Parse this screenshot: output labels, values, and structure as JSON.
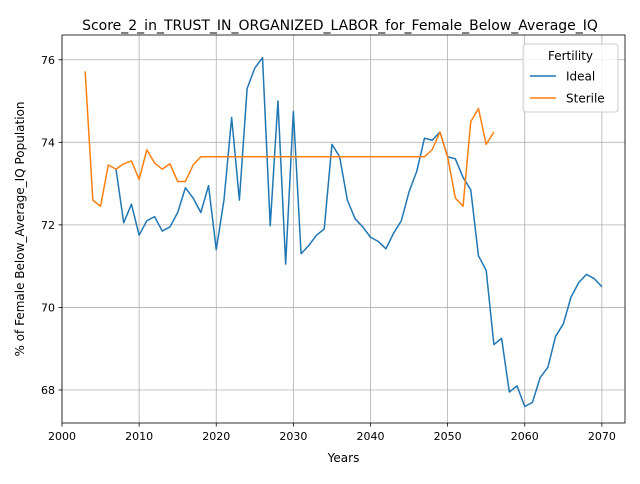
{
  "chart_data": {
    "type": "line",
    "title": "Score_2_in_TRUST_IN_ORGANIZED_LABOR_for_Female_Below_Average_IQ",
    "xlabel": "Years",
    "ylabel": "% of Female Below_Average_IQ Population",
    "xlim": [
      2000,
      2073
    ],
    "ylim": [
      67.2,
      76.6
    ],
    "x_ticks": [
      2000,
      2010,
      2020,
      2030,
      2040,
      2050,
      2060,
      2070
    ],
    "y_ticks": [
      68,
      70,
      72,
      74,
      76
    ],
    "grid": true,
    "legend": {
      "title": "Fertility",
      "placement": "top-right",
      "entries": [
        "Ideal",
        "Sterile"
      ]
    },
    "series": [
      {
        "name": "Ideal",
        "color": "#1f77b4",
        "points": [
          [
            2007,
            73.35
          ],
          [
            2008,
            72.05
          ],
          [
            2009,
            72.5
          ],
          [
            2010,
            71.75
          ],
          [
            2011,
            72.1
          ],
          [
            2012,
            72.2
          ],
          [
            2013,
            71.85
          ],
          [
            2014,
            71.95
          ],
          [
            2015,
            72.3
          ],
          [
            2016,
            72.9
          ],
          [
            2017,
            72.65
          ],
          [
            2018,
            72.3
          ],
          [
            2019,
            72.95
          ],
          [
            2020,
            71.4
          ],
          [
            2021,
            72.6
          ],
          [
            2022,
            74.6
          ],
          [
            2023,
            72.6
          ],
          [
            2024,
            75.3
          ],
          [
            2025,
            75.8
          ],
          [
            2026,
            76.05
          ],
          [
            2027,
            71.98
          ],
          [
            2028,
            75.0
          ],
          [
            2029,
            71.05
          ],
          [
            2030,
            74.75
          ],
          [
            2031,
            71.3
          ],
          [
            2032,
            71.5
          ],
          [
            2033,
            71.75
          ],
          [
            2034,
            71.9
          ],
          [
            2035,
            73.95
          ],
          [
            2036,
            73.65
          ],
          [
            2037,
            72.6
          ],
          [
            2038,
            72.15
          ],
          [
            2039,
            71.95
          ],
          [
            2040,
            71.7
          ],
          [
            2041,
            71.6
          ],
          [
            2042,
            71.42
          ],
          [
            2043,
            71.8
          ],
          [
            2044,
            72.1
          ],
          [
            2045,
            72.8
          ],
          [
            2046,
            73.3
          ],
          [
            2047,
            74.1
          ],
          [
            2048,
            74.05
          ],
          [
            2049,
            74.25
          ],
          [
            2050,
            73.65
          ],
          [
            2051,
            73.6
          ],
          [
            2052,
            73.15
          ],
          [
            2053,
            72.85
          ],
          [
            2054,
            71.25
          ],
          [
            2055,
            70.9
          ],
          [
            2056,
            69.1
          ],
          [
            2057,
            69.25
          ],
          [
            2058,
            67.95
          ],
          [
            2059,
            68.1
          ],
          [
            2060,
            67.6
          ],
          [
            2061,
            67.7
          ],
          [
            2062,
            68.3
          ],
          [
            2063,
            68.55
          ],
          [
            2064,
            69.3
          ],
          [
            2065,
            69.6
          ],
          [
            2066,
            70.25
          ],
          [
            2067,
            70.6
          ],
          [
            2068,
            70.8
          ],
          [
            2069,
            70.7
          ],
          [
            2070,
            70.5
          ]
        ]
      },
      {
        "name": "Sterile",
        "color": "#ff7f0e",
        "points": [
          [
            2003,
            75.72
          ],
          [
            2004,
            72.6
          ],
          [
            2005,
            72.45
          ],
          [
            2006,
            73.45
          ],
          [
            2007,
            73.35
          ],
          [
            2008,
            73.48
          ],
          [
            2009,
            73.55
          ],
          [
            2010,
            73.1
          ],
          [
            2011,
            73.82
          ],
          [
            2012,
            73.5
          ],
          [
            2013,
            73.35
          ],
          [
            2014,
            73.48
          ],
          [
            2015,
            73.05
          ],
          [
            2016,
            73.05
          ],
          [
            2017,
            73.45
          ],
          [
            2018,
            73.65
          ],
          [
            2019,
            73.65
          ],
          [
            2020,
            73.65
          ],
          [
            2025,
            73.65
          ],
          [
            2030,
            73.65
          ],
          [
            2035,
            73.65
          ],
          [
            2040,
            73.65
          ],
          [
            2045,
            73.65
          ],
          [
            2047,
            73.65
          ],
          [
            2048,
            73.82
          ],
          [
            2049,
            74.25
          ],
          [
            2050,
            73.65
          ],
          [
            2051,
            72.65
          ],
          [
            2052,
            72.45
          ],
          [
            2053,
            74.5
          ],
          [
            2054,
            74.82
          ],
          [
            2055,
            73.95
          ],
          [
            2056,
            74.25
          ]
        ]
      }
    ]
  }
}
